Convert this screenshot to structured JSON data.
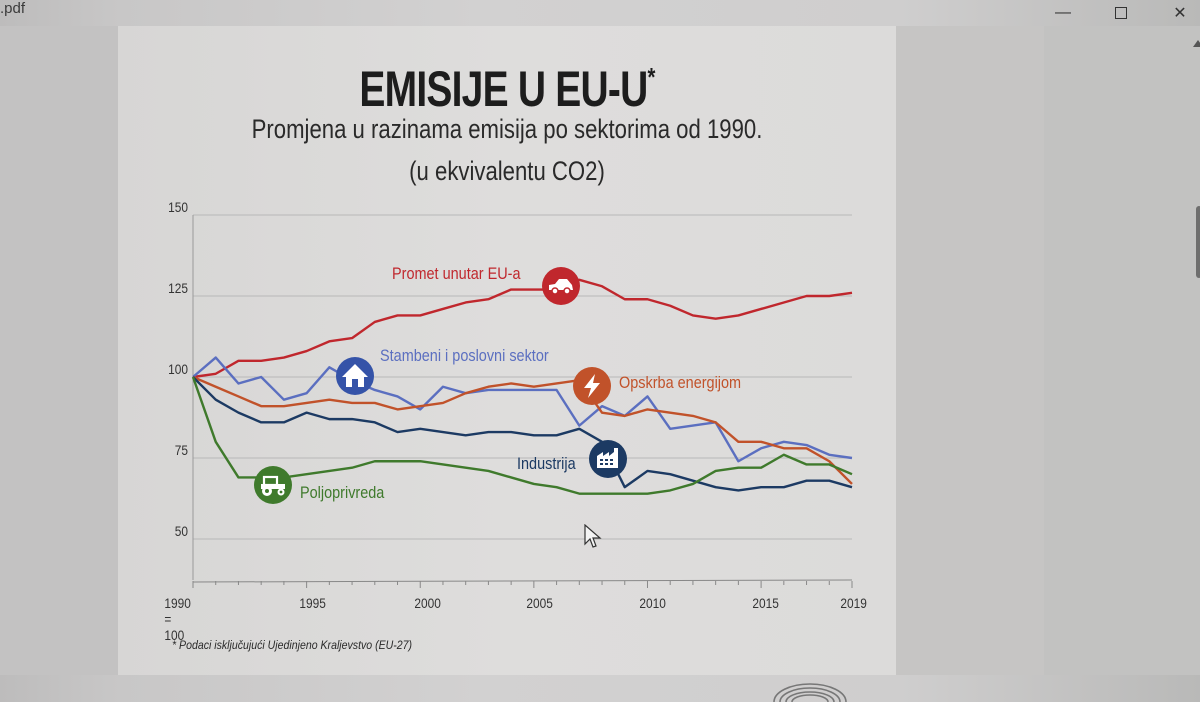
{
  "window": {
    "file_name": ".pdf",
    "minimize_label": "—",
    "maximize_label": "",
    "close_label": "✕"
  },
  "page": {
    "title": "EMISIJE U EU-U",
    "title_mark": "*",
    "subtitle_line1": "Promjena u razinama emisija po sektorima od 1990.",
    "subtitle_line2": "(u ekvivalentu CO2)",
    "footnote": "* Podaci isključujući Ujedinjeno Kraljevstvo (EU-27)",
    "x_base_label": "1990 = 100"
  },
  "icons": {
    "transport": "car-icon",
    "residential": "house-icon",
    "energy": "lightning-icon",
    "industry": "factory-icon",
    "agriculture": "tractor-icon"
  },
  "colors": {
    "transport": "#c0272d",
    "residential": "#5b6fc0",
    "energy": "#c1522a",
    "industry": "#1c3a63",
    "agriculture": "#3f7a2c",
    "grid": "#b8b8b8"
  },
  "chart_data": {
    "type": "line",
    "title": "EMISIJE U EU-U*",
    "subtitle": "Promjena u razinama emisija po sektorima od 1990. (u ekvivalentu CO2)",
    "xlabel": "",
    "ylabel": "",
    "x_note": "1990 = 100",
    "ylim": [
      40,
      150
    ],
    "yticks": [
      50,
      75,
      100,
      125,
      150
    ],
    "xticks": [
      1990,
      1995,
      2000,
      2005,
      2010,
      2015,
      2019
    ],
    "xtick_labels": [
      "1990 = 100",
      "1995",
      "2000",
      "2005",
      "2010",
      "2015",
      "2019"
    ],
    "grid": true,
    "legend_position": "inline labels",
    "x": [
      1990,
      1991,
      1992,
      1993,
      1994,
      1995,
      1996,
      1997,
      1998,
      1999,
      2000,
      2001,
      2002,
      2003,
      2004,
      2005,
      2006,
      2007,
      2008,
      2009,
      2010,
      2011,
      2012,
      2013,
      2014,
      2015,
      2016,
      2017,
      2018,
      2019
    ],
    "series": [
      {
        "name": "Promet unutar EU-a",
        "color": "#c0272d",
        "values": [
          100,
          101,
          105,
          105,
          106,
          108,
          111,
          112,
          117,
          119,
          119,
          121,
          123,
          124,
          127,
          127,
          127,
          130,
          128,
          124,
          124,
          122,
          119,
          118,
          119,
          121,
          123,
          125,
          125,
          126
        ]
      },
      {
        "name": "Stambeni i poslovni sektor",
        "color": "#5b6fc0",
        "values": [
          100,
          106,
          98,
          100,
          93,
          95,
          103,
          99,
          96,
          94,
          90,
          97,
          95,
          96,
          96,
          96,
          96,
          85,
          91,
          88,
          94,
          84,
          85,
          86,
          74,
          78,
          80,
          79,
          76,
          75
        ]
      },
      {
        "name": "Opskrba energijom",
        "color": "#c1522a",
        "values": [
          100,
          97,
          94,
          91,
          91,
          92,
          93,
          92,
          92,
          90,
          91,
          92,
          95,
          97,
          98,
          97,
          98,
          99,
          89,
          88,
          90,
          89,
          88,
          86,
          80,
          80,
          78,
          78,
          74,
          67
        ]
      },
      {
        "name": "Industrija",
        "color": "#1c3a63",
        "values": [
          100,
          93,
          89,
          86,
          86,
          89,
          87,
          87,
          86,
          83,
          84,
          83,
          82,
          83,
          83,
          82,
          82,
          84,
          80,
          66,
          71,
          70,
          68,
          66,
          65,
          66,
          66,
          68,
          68,
          66
        ]
      },
      {
        "name": "Poljoprivreda",
        "color": "#3f7a2c",
        "values": [
          100,
          80,
          69,
          69,
          69,
          70,
          71,
          72,
          74,
          74,
          74,
          73,
          72,
          71,
          69,
          67,
          66,
          64,
          64,
          64,
          64,
          65,
          67,
          71,
          72,
          72,
          76,
          73,
          73,
          70
        ]
      }
    ],
    "footnote": "* Podaci isključujući Ujedinjeno Kraljevstvo (EU-27)"
  }
}
